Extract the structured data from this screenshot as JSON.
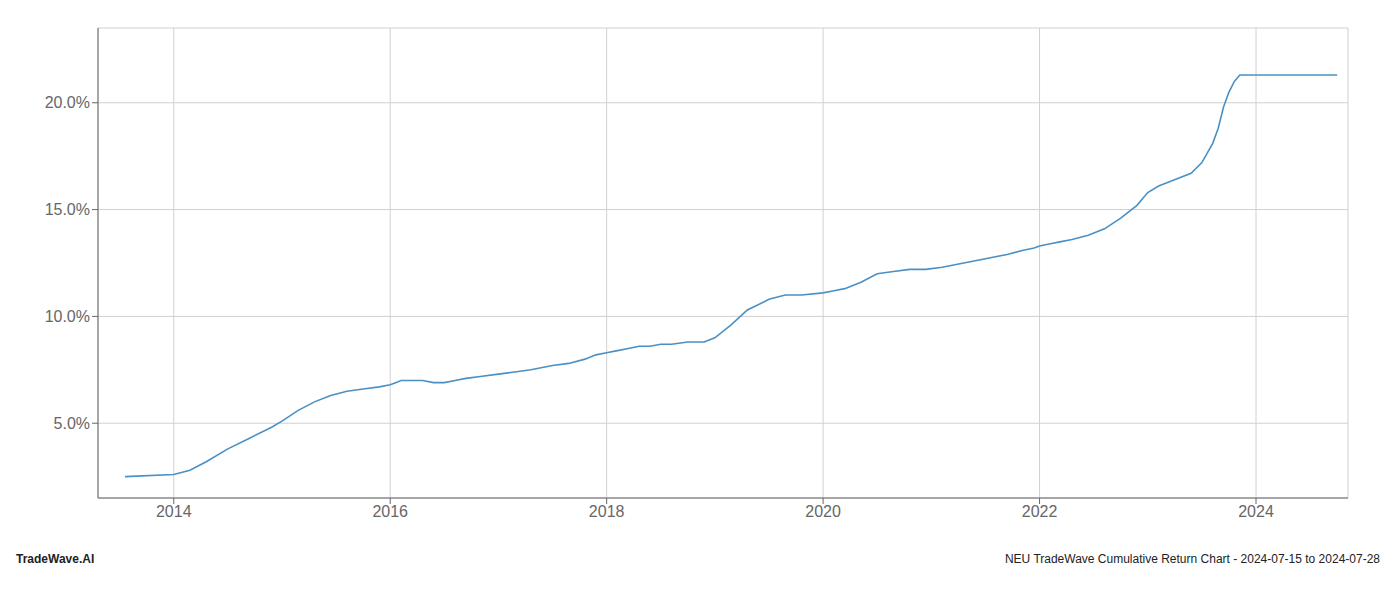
{
  "chart_data": {
    "type": "line",
    "x": [
      2013.55,
      2014.0,
      2014.15,
      2014.3,
      2014.5,
      2014.7,
      2014.9,
      2015.0,
      2015.15,
      2015.3,
      2015.45,
      2015.6,
      2015.75,
      2015.9,
      2016.0,
      2016.05,
      2016.1,
      2016.2,
      2016.3,
      2016.4,
      2016.5,
      2016.6,
      2016.7,
      2016.85,
      2017.0,
      2017.15,
      2017.3,
      2017.5,
      2017.65,
      2017.8,
      2017.9,
      2018.0,
      2018.1,
      2018.2,
      2018.3,
      2018.4,
      2018.5,
      2018.6,
      2018.75,
      2018.9,
      2019.0,
      2019.15,
      2019.3,
      2019.5,
      2019.65,
      2019.8,
      2020.0,
      2020.1,
      2020.2,
      2020.35,
      2020.5,
      2020.65,
      2020.8,
      2020.95,
      2021.1,
      2021.3,
      2021.5,
      2021.7,
      2021.85,
      2021.95,
      2022.0,
      2022.1,
      2022.2,
      2022.3,
      2022.45,
      2022.6,
      2022.75,
      2022.9,
      2023.0,
      2023.1,
      2023.2,
      2023.3,
      2023.4,
      2023.5,
      2023.6,
      2023.65,
      2023.7,
      2023.75,
      2023.8,
      2023.85,
      2024.0,
      2024.1,
      2024.3,
      2024.55,
      2024.75
    ],
    "values": [
      0.025,
      0.026,
      0.028,
      0.032,
      0.038,
      0.043,
      0.048,
      0.051,
      0.056,
      0.06,
      0.063,
      0.065,
      0.066,
      0.067,
      0.068,
      0.069,
      0.07,
      0.07,
      0.07,
      0.069,
      0.069,
      0.07,
      0.071,
      0.072,
      0.073,
      0.074,
      0.075,
      0.077,
      0.078,
      0.08,
      0.082,
      0.083,
      0.084,
      0.085,
      0.086,
      0.086,
      0.087,
      0.087,
      0.088,
      0.088,
      0.09,
      0.096,
      0.103,
      0.108,
      0.11,
      0.11,
      0.111,
      0.112,
      0.113,
      0.116,
      0.12,
      0.121,
      0.122,
      0.122,
      0.123,
      0.125,
      0.127,
      0.129,
      0.131,
      0.132,
      0.133,
      0.134,
      0.135,
      0.136,
      0.138,
      0.141,
      0.146,
      0.152,
      0.158,
      0.161,
      0.163,
      0.165,
      0.167,
      0.172,
      0.181,
      0.188,
      0.198,
      0.205,
      0.21,
      0.213,
      0.213,
      0.213,
      0.213,
      0.213,
      0.213
    ],
    "color": "#4a90c4",
    "xlim": [
      2013.3,
      2024.85
    ],
    "xticks": [
      2014,
      2016,
      2018,
      2020,
      2022,
      2024
    ],
    "ylim": [
      0.015,
      0.235
    ],
    "yticks": [
      {
        "value": 0.05,
        "label": "5.0%"
      },
      {
        "value": 0.1,
        "label": "10.0%"
      },
      {
        "value": 0.15,
        "label": "15.0%"
      },
      {
        "value": 0.2,
        "label": "20.0%"
      }
    ],
    "grid": true,
    "annotations": [
      "TradeWave.AI",
      "NEU TradeWave Cumulative Return Chart - 2024-07-15 to 2024-07-28"
    ]
  }
}
